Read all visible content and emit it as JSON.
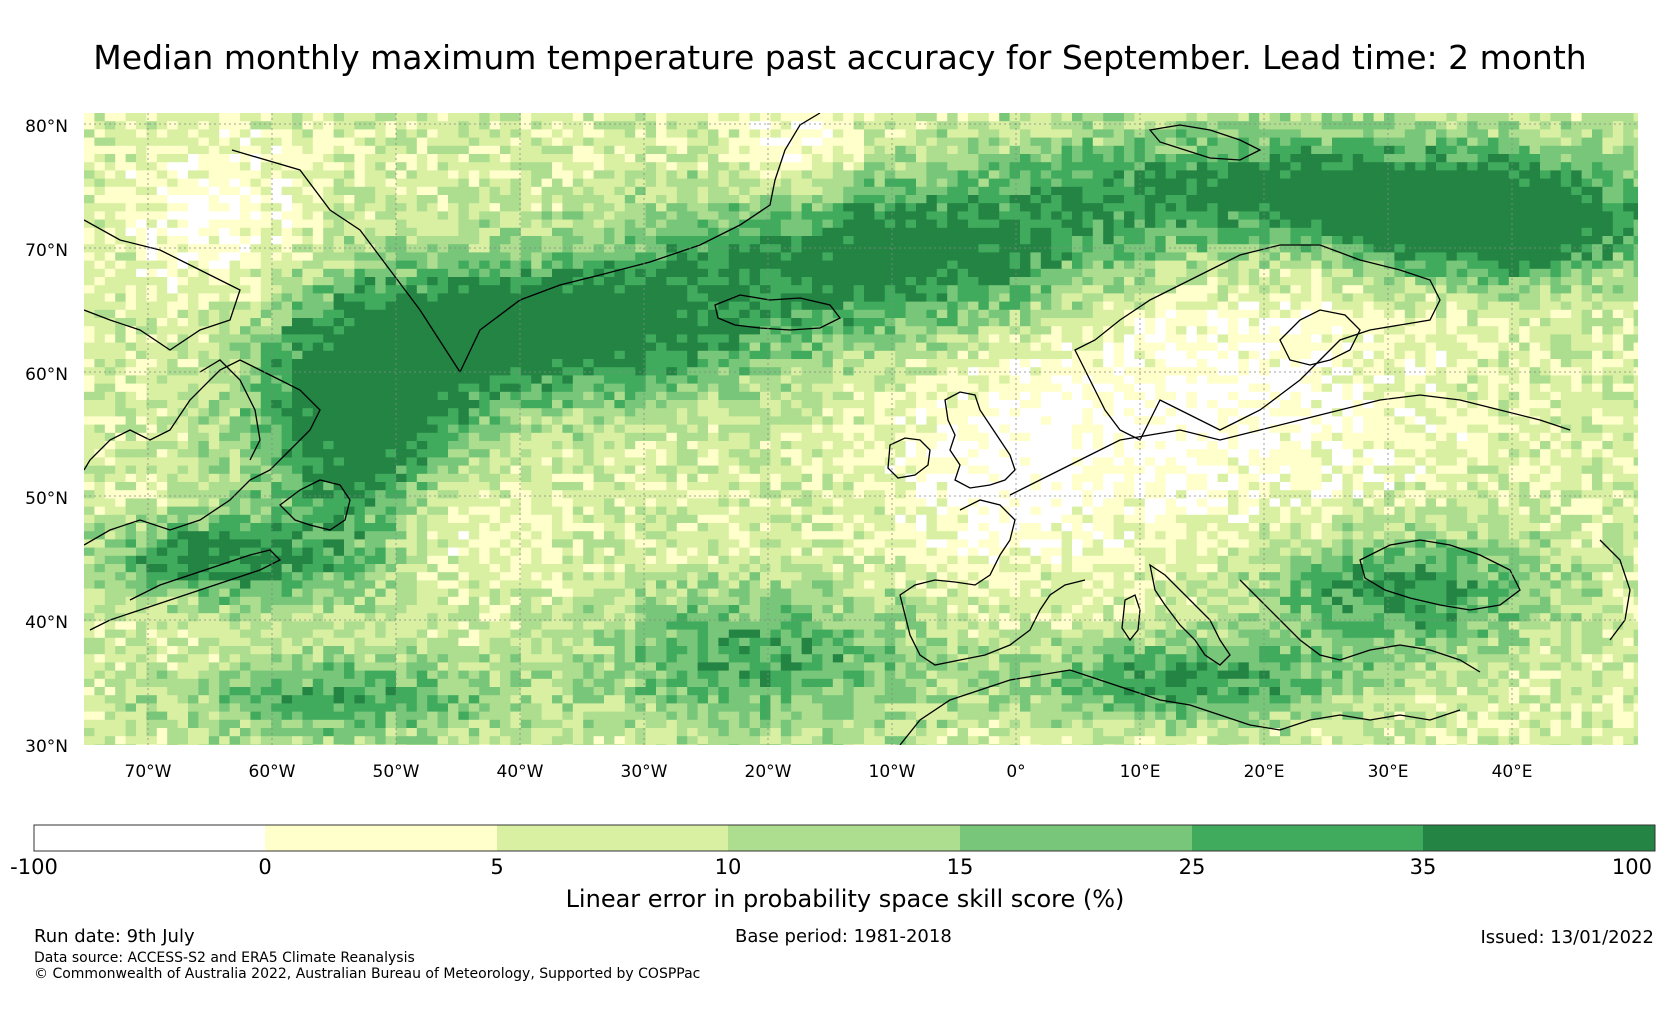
{
  "title": "Median monthly maximum temperature past accuracy for September. Lead time: 2 month",
  "map": {
    "lat_labels": [
      "80°N",
      "70°N",
      "60°N",
      "50°N",
      "40°N",
      "30°N"
    ],
    "lon_labels": [
      "70°W",
      "60°W",
      "50°W",
      "40°W",
      "30°W",
      "20°W",
      "10°W",
      "0°",
      "10°E",
      "20°E",
      "30°E",
      "40°E"
    ]
  },
  "colorbar": {
    "label": "Linear error in probability space skill score (%)",
    "ticks": [
      "-100",
      "0",
      "5",
      "10",
      "15",
      "25",
      "35",
      "100"
    ],
    "colors": [
      "#ffffff",
      "#ffffcc",
      "#d9f0a3",
      "#addd8e",
      "#78c679",
      "#41ab5d",
      "#238443"
    ]
  },
  "footer": {
    "run_date": "Run date: 9th July",
    "base_period": "Base period: 1981-2018",
    "issued": "Issued: 13/01/2022",
    "data_source": "Data source: ACCESS-S2 and ERA5 Climate Reanalysis",
    "copyright": "© Commonwealth of Australia 2022, Australian Bureau of Meteorology, Supported by COSPPac"
  }
}
